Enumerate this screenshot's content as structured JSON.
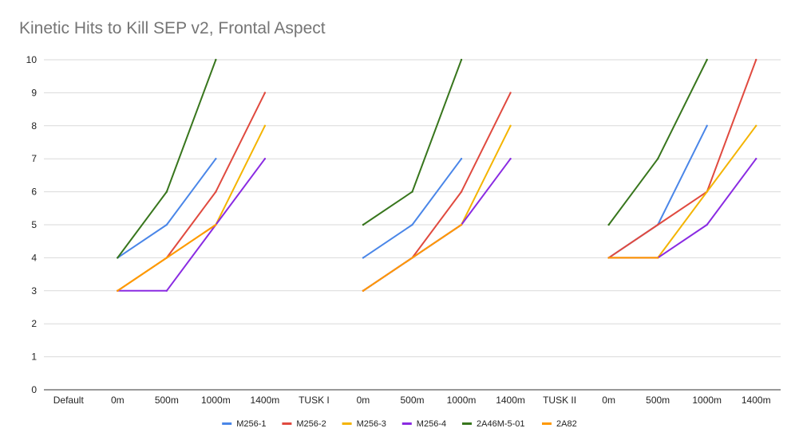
{
  "chart_data": {
    "type": "line",
    "title": "Kinetic Hits to Kill SEP v2, Frontal Aspect",
    "xlabel": "",
    "ylabel": "",
    "ylim": [
      0,
      10
    ],
    "yticks": [
      "0",
      "1",
      "2",
      "3",
      "4",
      "5",
      "6",
      "7",
      "8",
      "9",
      "10"
    ],
    "categories": [
      "Default",
      "0m",
      "500m",
      "1000m",
      "1400m",
      "TUSK I",
      "0m",
      "500m",
      "1000m",
      "1400m",
      "TUSK II",
      "0m",
      "500m",
      "1000m",
      "1400m"
    ],
    "grid": true,
    "legend_position": "bottom",
    "series": [
      {
        "name": "M256-1",
        "color": "#4a86e8",
        "values": [
          null,
          4,
          5,
          7,
          null,
          null,
          4,
          5,
          7,
          null,
          null,
          4,
          5,
          8,
          null
        ]
      },
      {
        "name": "M256-2",
        "color": "#e04a3f",
        "values": [
          null,
          3,
          4,
          6,
          9,
          null,
          3,
          4,
          6,
          9,
          null,
          4,
          5,
          6,
          10
        ]
      },
      {
        "name": "M256-3",
        "color": "#f4b400",
        "values": [
          null,
          3,
          4,
          5,
          8,
          null,
          3,
          4,
          5,
          8,
          null,
          4,
          4,
          6,
          8
        ]
      },
      {
        "name": "M256-4",
        "color": "#8a2be2",
        "values": [
          null,
          3,
          3,
          5,
          7,
          null,
          3,
          4,
          5,
          7,
          null,
          4,
          4,
          5,
          7
        ]
      },
      {
        "name": "2A46M-5-01",
        "color": "#38761d",
        "values": [
          null,
          4,
          6,
          10,
          null,
          null,
          5,
          6,
          10,
          null,
          null,
          5,
          7,
          10,
          null
        ]
      },
      {
        "name": "2A82",
        "color": "#ff9900",
        "values": [
          null,
          3,
          4,
          5,
          null,
          null,
          3,
          4,
          5,
          null,
          null,
          4,
          4,
          null,
          null
        ]
      }
    ]
  }
}
